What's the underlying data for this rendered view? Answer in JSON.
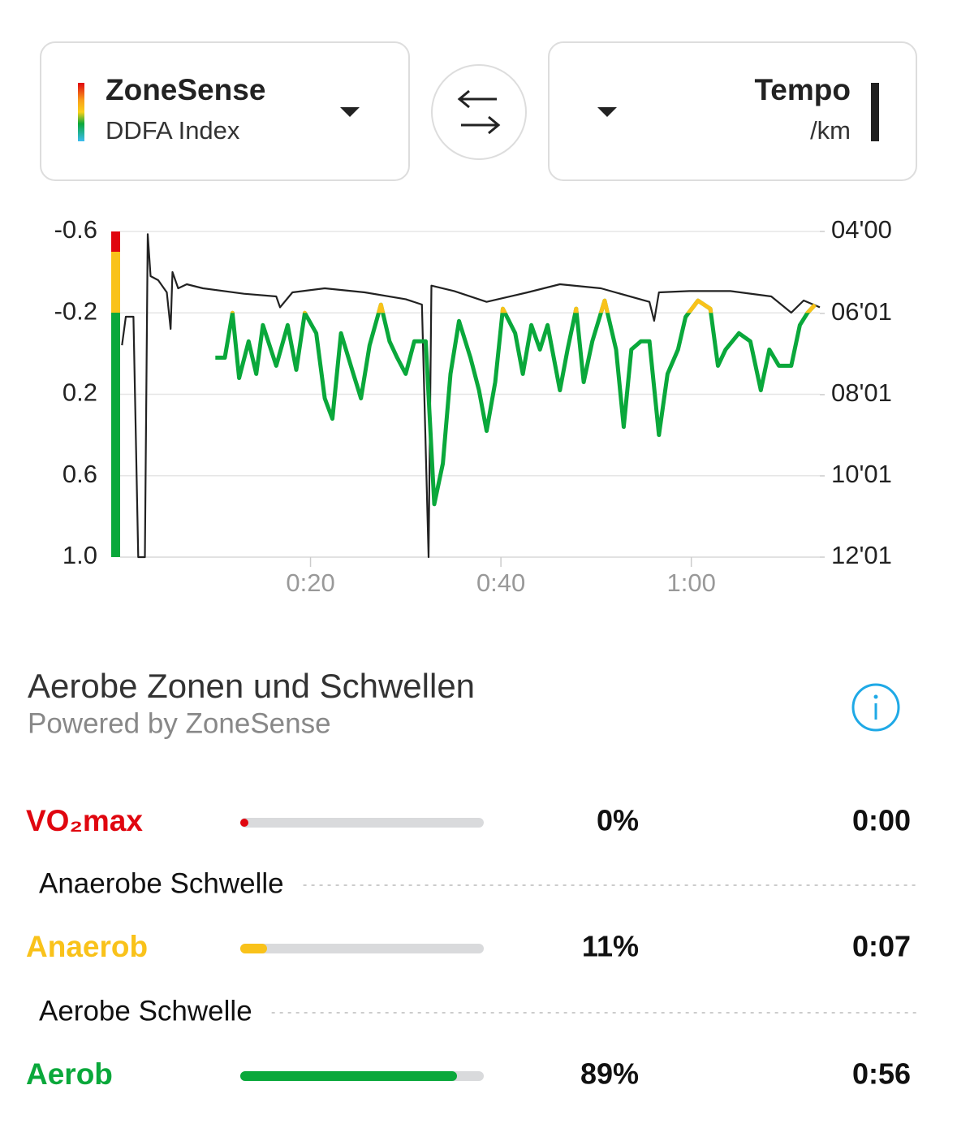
{
  "selectors": {
    "left": {
      "title": "ZoneSense",
      "subtitle": "DDFA Index"
    },
    "right": {
      "title": "Tempo",
      "subtitle": "/km"
    }
  },
  "chart_data": {
    "type": "line",
    "xlim": [
      0,
      73.5
    ],
    "xticks": [
      {
        "value": 20,
        "label": "0:20"
      },
      {
        "value": 40,
        "label": "0:40"
      },
      {
        "value": 60,
        "label": "1:00"
      }
    ],
    "ylim": [
      1,
      -0.6
    ],
    "yticks": [
      -0.6,
      -0.2,
      0.2,
      0.6,
      {
        "value": 1,
        "label": "1.0"
      }
    ],
    "y2lim": [
      721,
      240
    ],
    "y2ticks": [
      {
        "value": 240,
        "label": "04'00"
      },
      {
        "value": 361,
        "label": "06'01"
      },
      {
        "value": 481,
        "label": "08'01"
      },
      {
        "value": 601,
        "label": "10'01"
      },
      {
        "value": 721,
        "label": "12'01"
      }
    ],
    "grid": true,
    "anaerobic_threshold": -0.2,
    "threshold_color": "#f9c21a",
    "series": [
      {
        "color": "#0aa83b",
        "axis": "y",
        "x": [
          10,
          11,
          11.8,
          12.5,
          13.5,
          14.3,
          15,
          16.4,
          17.6,
          18.5,
          19.4,
          20.6,
          21.5,
          22.3,
          23.2,
          24.5,
          25.3,
          26.2,
          27.4,
          28.3,
          29.1,
          30,
          30.9,
          32.1,
          33,
          33.9,
          34.7,
          35.6,
          36.8,
          37.7,
          38.5,
          39.4,
          40.2,
          41.5,
          42.3,
          43.2,
          44.1,
          44.9,
          46.2,
          47,
          47.9,
          48.7,
          49.6,
          50.9,
          52.1,
          52.9,
          53.7,
          54.7,
          55.6,
          56.6,
          57.5,
          58.6,
          59.4,
          60.7,
          62,
          62.8,
          63.6,
          65,
          66.2,
          67.3,
          68.2,
          69.2,
          70.5,
          71.4,
          72.2,
          73
        ],
        "values": [
          0.02,
          0.02,
          -0.2,
          0.12,
          -0.06,
          0.1,
          -0.14,
          0.06,
          -0.14,
          0.08,
          -0.2,
          -0.1,
          0.22,
          0.32,
          -0.1,
          0.1,
          0.22,
          -0.04,
          -0.24,
          -0.06,
          0.02,
          0.1,
          -0.06,
          -0.06,
          0.74,
          0.54,
          0.1,
          -0.16,
          0.02,
          0.18,
          0.38,
          0.14,
          -0.22,
          -0.1,
          0.1,
          -0.14,
          -0.02,
          -0.14,
          0.18,
          -0.02,
          -0.22,
          0.14,
          -0.06,
          -0.26,
          -0.02,
          0.36,
          -0.02,
          -0.06,
          -0.06,
          0.4,
          0.1,
          -0.02,
          -0.18,
          -0.26,
          -0.22,
          0.06,
          -0.02,
          -0.1,
          -0.06,
          0.18,
          -0.02,
          0.06,
          0.06,
          -0.14,
          -0.2,
          -0.24
        ]
      },
      {
        "color": "#222222",
        "axis": "y2",
        "x": [
          0.2,
          0.6,
          1.4,
          1.9,
          2.6,
          2.9,
          3.2,
          4,
          4.9,
          5.3,
          5.5,
          6.1,
          7,
          8.7,
          13,
          16.4,
          16.8,
          18.1,
          21.5,
          25.7,
          30,
          31.7,
          32.4,
          32.7,
          35.1,
          38.5,
          42.8,
          46.2,
          50.5,
          55.6,
          56.1,
          56.6,
          59.8,
          64.1,
          68.4,
          70.5,
          71.8,
          73.5
        ],
        "values": [
          408,
          366,
          366,
          721,
          721,
          244,
          306,
          312,
          330,
          384,
          300,
          324,
          318,
          324,
          332,
          336,
          352,
          330,
          324,
          330,
          340,
          348,
          721,
          320,
          328,
          344,
          330,
          318,
          324,
          344,
          372,
          330,
          328,
          328,
          336,
          360,
          342,
          352
        ]
      }
    ]
  },
  "zones": {
    "title": "Aerobe Zonen und Schwellen",
    "subtitle": "Powered by ZoneSense",
    "rows": [
      {
        "label": "VO₂max",
        "color": "#e0060f",
        "percent": 0,
        "percent_label": "0%",
        "time": "0:00"
      },
      {
        "label": "Anaerob",
        "color": "#f9c21a",
        "percent": 11,
        "percent_label": "11%",
        "time": "0:07"
      },
      {
        "label": "Aerob",
        "color": "#0aa83b",
        "percent": 89,
        "percent_label": "89%",
        "time": "0:56"
      }
    ],
    "thresholds": [
      "Anaerobe Schwelle",
      "Aerobe Schwelle"
    ]
  }
}
